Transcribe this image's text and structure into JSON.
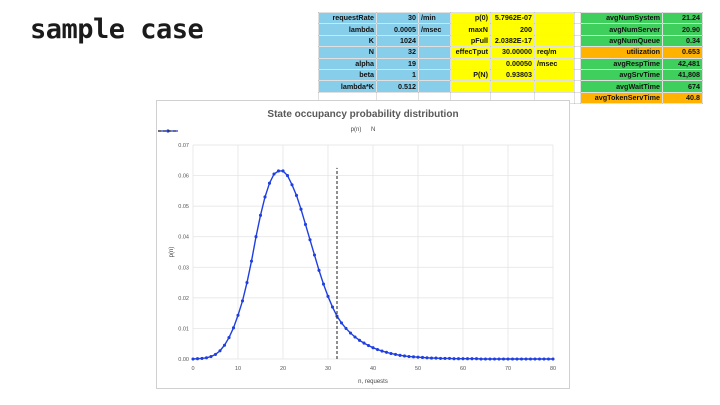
{
  "slide": {
    "title": "sample case"
  },
  "table": {
    "blue": [
      {
        "label": "requestRate",
        "value": "30",
        "unit": "/min"
      },
      {
        "label": "lambda",
        "value": "0.0005",
        "unit": "/msec"
      },
      {
        "label": "K",
        "value": "1024",
        "unit": ""
      },
      {
        "label": "N",
        "value": "32",
        "unit": ""
      },
      {
        "label": "alpha",
        "value": "19",
        "unit": ""
      },
      {
        "label": "beta",
        "value": "1",
        "unit": ""
      },
      {
        "label": "lambda*K",
        "value": "0.512",
        "unit": ""
      }
    ],
    "yellow": [
      {
        "label": "p(0)",
        "value": "5.7962E-07",
        "unit": ""
      },
      {
        "label": "maxN",
        "value": "200",
        "unit": ""
      },
      {
        "label": "pFull",
        "value": "2.0382E-17",
        "unit": ""
      },
      {
        "label": "effecTput",
        "value": "30.00000",
        "unit": "req/m"
      },
      {
        "label": "",
        "value": "0.00050",
        "unit": "/msec"
      },
      {
        "label": "P(N)",
        "value": "0.93803",
        "unit": ""
      },
      {
        "label": "",
        "value": "",
        "unit": ""
      }
    ],
    "metrics": [
      {
        "label": "avgNumSystem",
        "value": "21.24",
        "color": "#3fcf5c"
      },
      {
        "label": "avgNumServer",
        "value": "20.90",
        "color": "#3fcf5c"
      },
      {
        "label": "avgNumQueue",
        "value": "0.34",
        "color": "#3fcf5c"
      },
      {
        "label": "utilization",
        "value": "0.653",
        "color": "#ffb300"
      },
      {
        "label": "avgRespTime",
        "value": "42,481",
        "color": "#3fcf5c"
      },
      {
        "label": "avgSrvTime",
        "value": "41,808",
        "color": "#3fcf5c"
      },
      {
        "label": "avgWaitTime",
        "value": "674",
        "color": "#3fcf5c"
      },
      {
        "label": "avgTokenServTime",
        "value": "40.8",
        "color": "#ffb300"
      }
    ]
  },
  "chart_data": {
    "type": "line",
    "title": "State occupancy probability distribution",
    "xlabel": "n, requests",
    "ylabel": "p(n)",
    "xlim": [
      0,
      80
    ],
    "ylim": [
      0,
      0.07
    ],
    "xticks": [
      "0",
      "10",
      "20",
      "30",
      "40",
      "50",
      "60",
      "70",
      "80"
    ],
    "yticks": [
      "0.00",
      "0.01",
      "0.02",
      "0.03",
      "0.04",
      "0.05",
      "0.06",
      "0.07"
    ],
    "grid": true,
    "legend_position": "top",
    "series": [
      {
        "name": "p(n)",
        "color": "#1f3fe0",
        "x": [
          0,
          1,
          2,
          3,
          4,
          5,
          6,
          7,
          8,
          9,
          10,
          11,
          12,
          13,
          14,
          15,
          16,
          17,
          18,
          19,
          20,
          21,
          22,
          23,
          24,
          25,
          26,
          27,
          28,
          29,
          30,
          31,
          32,
          33,
          34,
          35,
          36,
          37,
          38,
          39,
          40,
          41,
          42,
          43,
          44,
          45,
          46,
          47,
          48,
          49,
          50,
          51,
          52,
          53,
          54,
          55,
          56,
          57,
          58,
          59,
          60,
          61,
          62,
          63,
          64,
          65,
          66,
          67,
          68,
          69,
          70,
          71,
          72,
          73,
          74,
          75,
          76,
          77,
          78,
          79,
          80
        ],
        "y": [
          0.0,
          0.0001,
          0.0002,
          0.0004,
          0.0008,
          0.0015,
          0.0027,
          0.0045,
          0.007,
          0.0102,
          0.0143,
          0.019,
          0.025,
          0.032,
          0.04,
          0.047,
          0.053,
          0.0575,
          0.0605,
          0.0615,
          0.0615,
          0.06,
          0.057,
          0.0535,
          0.049,
          0.044,
          0.039,
          0.034,
          0.029,
          0.0245,
          0.0205,
          0.017,
          0.014,
          0.0118,
          0.01,
          0.0085,
          0.0072,
          0.0061,
          0.0052,
          0.0044,
          0.0037,
          0.0031,
          0.0026,
          0.0022,
          0.0018,
          0.0015,
          0.0012,
          0.001,
          0.0008,
          0.0007,
          0.0006,
          0.0005,
          0.0004,
          0.0003,
          0.0003,
          0.0002,
          0.0002,
          0.0002,
          0.0001,
          0.0001,
          0.0001,
          0.0001,
          0.0001,
          0.0001,
          0.0,
          0.0,
          0.0,
          0.0,
          0.0,
          0.0,
          0.0,
          0.0,
          0.0,
          0.0,
          0.0,
          0.0,
          0.0,
          0.0,
          0.0,
          0.0,
          0.0
        ]
      },
      {
        "name": "N",
        "color": "#333333",
        "dashed": true,
        "x": [
          32,
          32
        ],
        "y": [
          0,
          0.0625
        ]
      }
    ]
  }
}
